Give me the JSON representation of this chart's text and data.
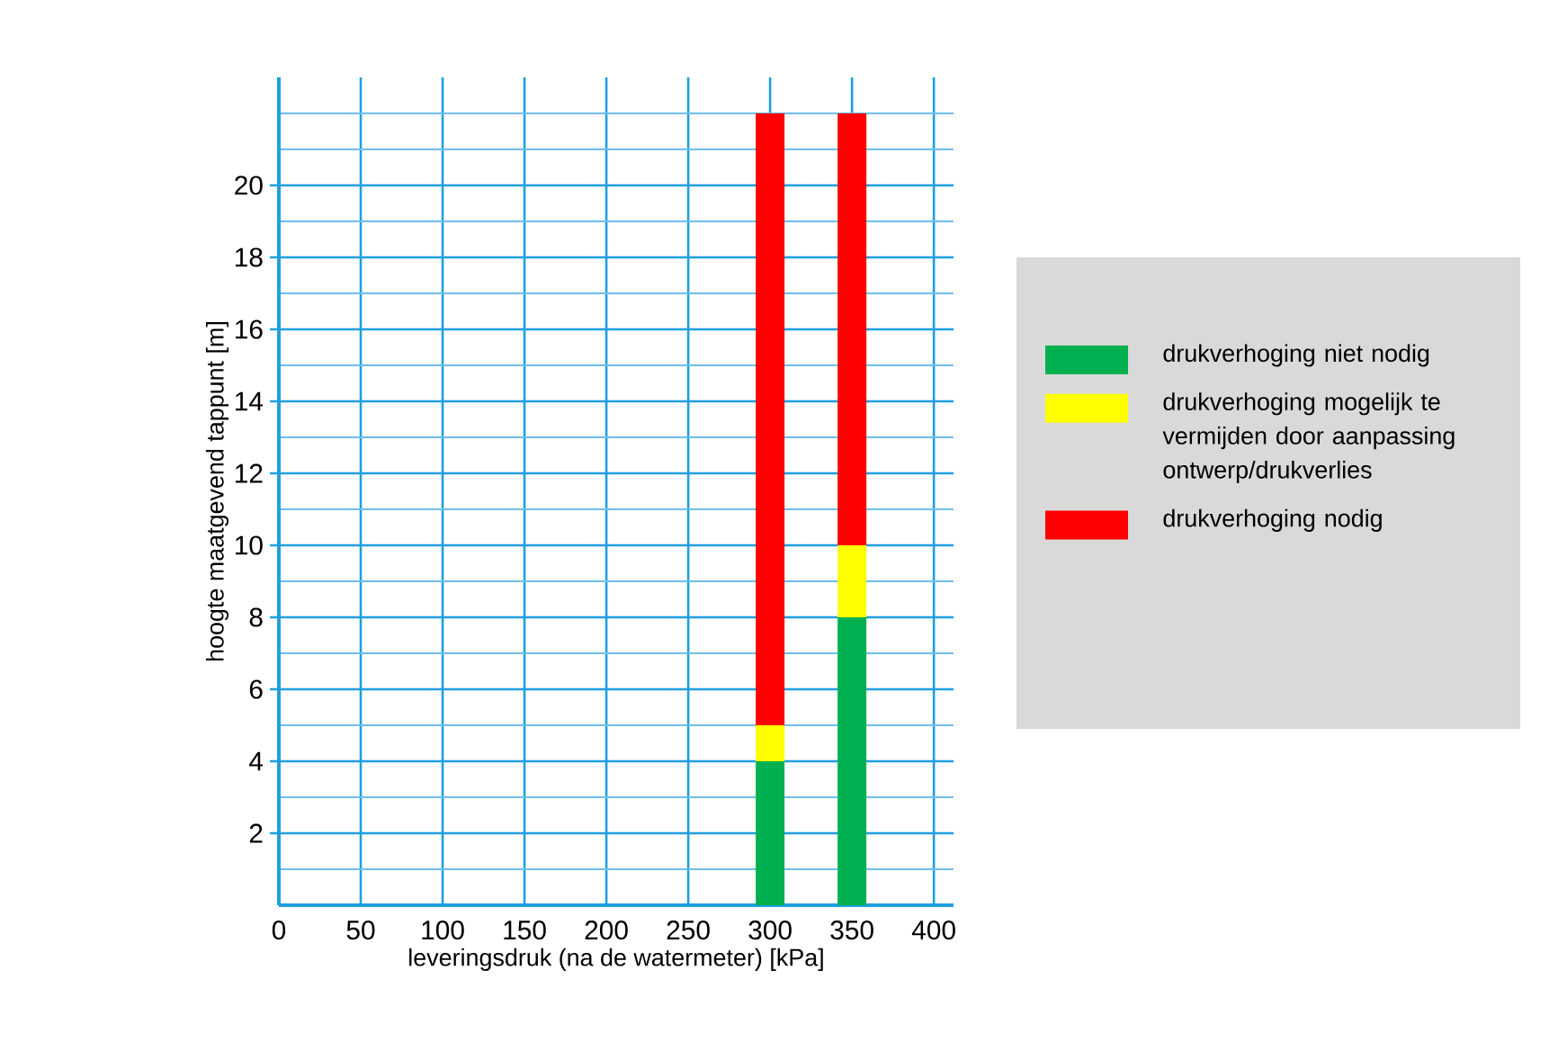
{
  "chart_data": {
    "type": "bar",
    "stacked": true,
    "xlabel": "leveringsdruk (na de watermeter)  [kPa]",
    "ylabel": "hoogte maatgevend  tappunt  [m]",
    "x": [
      300,
      350
    ],
    "series": [
      {
        "name": "drukverhoging niet nodig",
        "color": "#00b050",
        "values": [
          4,
          8
        ]
      },
      {
        "name": "drukverhoging mogelijk te vermijden door aanpassing ontwerp/drukverlies",
        "color": "#ffff00",
        "values": [
          1,
          2
        ]
      },
      {
        "name": "drukverhoging  nodig",
        "color": "#ff0000",
        "values": [
          17,
          12
        ]
      }
    ],
    "xlim": [
      0,
      412
    ],
    "ylim": [
      0,
      23
    ],
    "xticks": [
      0,
      50,
      100,
      150,
      200,
      250,
      300,
      350,
      400
    ],
    "yticks": [
      {
        "value": 1,
        "label": null
      },
      2,
      {
        "value": 3,
        "label": null
      },
      4,
      {
        "value": 5,
        "label": null
      },
      6,
      {
        "value": 7,
        "label": null
      },
      8,
      {
        "value": 9,
        "label": null
      },
      10,
      {
        "value": 11,
        "label": null
      },
      12,
      {
        "value": 13,
        "label": null
      },
      14,
      {
        "value": 15,
        "label": null
      },
      16,
      {
        "value": 17,
        "label": null
      },
      18,
      {
        "value": 19,
        "label": null
      },
      20,
      {
        "value": 21,
        "label": null
      },
      {
        "value": 22,
        "label": null
      }
    ],
    "grid": true,
    "legend": "right"
  }
}
